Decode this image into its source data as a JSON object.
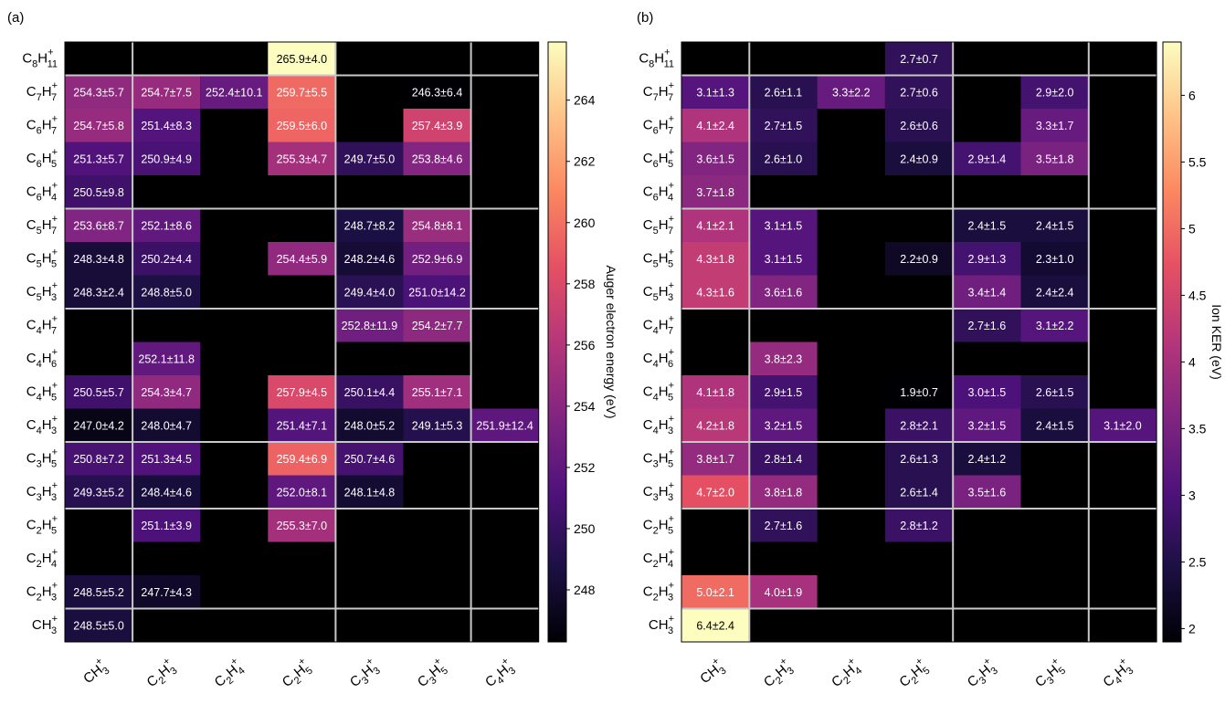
{
  "panels": [
    "(a)",
    "(b)"
  ],
  "rows": [
    {
      "base": "C",
      "cs": "8",
      "h": "H",
      "hs": "11"
    },
    {
      "base": "C",
      "cs": "7",
      "h": "H",
      "hs": "7"
    },
    {
      "base": "C",
      "cs": "6",
      "h": "H",
      "hs": "7"
    },
    {
      "base": "C",
      "cs": "6",
      "h": "H",
      "hs": "5"
    },
    {
      "base": "C",
      "cs": "6",
      "h": "H",
      "hs": "4"
    },
    {
      "base": "C",
      "cs": "5",
      "h": "H",
      "hs": "7"
    },
    {
      "base": "C",
      "cs": "5",
      "h": "H",
      "hs": "5"
    },
    {
      "base": "C",
      "cs": "5",
      "h": "H",
      "hs": "3"
    },
    {
      "base": "C",
      "cs": "4",
      "h": "H",
      "hs": "7"
    },
    {
      "base": "C",
      "cs": "4",
      "h": "H",
      "hs": "6"
    },
    {
      "base": "C",
      "cs": "4",
      "h": "H",
      "hs": "5"
    },
    {
      "base": "C",
      "cs": "4",
      "h": "H",
      "hs": "3"
    },
    {
      "base": "C",
      "cs": "3",
      "h": "H",
      "hs": "5"
    },
    {
      "base": "C",
      "cs": "3",
      "h": "H",
      "hs": "3"
    },
    {
      "base": "C",
      "cs": "2",
      "h": "H",
      "hs": "5"
    },
    {
      "base": "C",
      "cs": "2",
      "h": "H",
      "hs": "4"
    },
    {
      "base": "C",
      "cs": "2",
      "h": "H",
      "hs": "3"
    },
    {
      "base": "CH",
      "cs": "",
      "h": "",
      "hs": "3"
    }
  ],
  "cols": [
    {
      "base": "CH",
      "cs": "",
      "h": "",
      "hs": "3"
    },
    {
      "base": "C",
      "cs": "2",
      "h": "H",
      "hs": "3"
    },
    {
      "base": "C",
      "cs": "2",
      "h": "H",
      "hs": "4"
    },
    {
      "base": "C",
      "cs": "2",
      "h": "H",
      "hs": "5"
    },
    {
      "base": "C",
      "cs": "3",
      "h": "H",
      "hs": "3"
    },
    {
      "base": "C",
      "cs": "3",
      "h": "H",
      "hs": "5"
    },
    {
      "base": "C",
      "cs": "4",
      "h": "H",
      "hs": "3"
    }
  ],
  "chart_data": [
    {
      "type": "heatmap",
      "panel": "(a)",
      "colorbar_label": "Auger electron energy (eV)",
      "colorbar_range": [
        246.3,
        265.9
      ],
      "colorbar_ticks": [
        248,
        250,
        252,
        254,
        256,
        258,
        260,
        262,
        264
      ],
      "cells": [
        {
          "r": 0,
          "c": 3,
          "v": 265.9,
          "label": "265.9±4.0"
        },
        {
          "r": 1,
          "c": 0,
          "v": 254.3,
          "label": "254.3±5.7"
        },
        {
          "r": 1,
          "c": 1,
          "v": 254.7,
          "label": "254.7±7.5"
        },
        {
          "r": 1,
          "c": 2,
          "v": 252.4,
          "label": "252.4±10.1"
        },
        {
          "r": 1,
          "c": 3,
          "v": 259.7,
          "label": "259.7±5.5"
        },
        {
          "r": 1,
          "c": 5,
          "v": 246.3,
          "label": "246.3±6.4"
        },
        {
          "r": 2,
          "c": 0,
          "v": 254.7,
          "label": "254.7±5.8"
        },
        {
          "r": 2,
          "c": 1,
          "v": 251.4,
          "label": "251.4±8.3"
        },
        {
          "r": 2,
          "c": 3,
          "v": 259.5,
          "label": "259.5±6.0"
        },
        {
          "r": 2,
          "c": 5,
          "v": 257.4,
          "label": "257.4±3.9"
        },
        {
          "r": 3,
          "c": 0,
          "v": 251.3,
          "label": "251.3±5.7"
        },
        {
          "r": 3,
          "c": 1,
          "v": 250.9,
          "label": "250.9±4.9"
        },
        {
          "r": 3,
          "c": 3,
          "v": 255.3,
          "label": "255.3±4.7"
        },
        {
          "r": 3,
          "c": 4,
          "v": 249.7,
          "label": "249.7±5.0"
        },
        {
          "r": 3,
          "c": 5,
          "v": 253.8,
          "label": "253.8±4.6"
        },
        {
          "r": 4,
          "c": 0,
          "v": 250.5,
          "label": "250.5±9.8"
        },
        {
          "r": 5,
          "c": 0,
          "v": 253.6,
          "label": "253.6±8.7"
        },
        {
          "r": 5,
          "c": 1,
          "v": 252.1,
          "label": "252.1±8.6"
        },
        {
          "r": 5,
          "c": 4,
          "v": 248.7,
          "label": "248.7±8.2"
        },
        {
          "r": 5,
          "c": 5,
          "v": 254.8,
          "label": "254.8±8.1"
        },
        {
          "r": 6,
          "c": 0,
          "v": 248.3,
          "label": "248.3±4.8"
        },
        {
          "r": 6,
          "c": 1,
          "v": 250.2,
          "label": "250.2±4.4"
        },
        {
          "r": 6,
          "c": 3,
          "v": 254.4,
          "label": "254.4±5.9"
        },
        {
          "r": 6,
          "c": 4,
          "v": 248.2,
          "label": "248.2±4.6"
        },
        {
          "r": 6,
          "c": 5,
          "v": 252.9,
          "label": "252.9±6.9"
        },
        {
          "r": 7,
          "c": 0,
          "v": 248.3,
          "label": "248.3±2.4"
        },
        {
          "r": 7,
          "c": 1,
          "v": 248.8,
          "label": "248.8±5.0"
        },
        {
          "r": 7,
          "c": 4,
          "v": 249.4,
          "label": "249.4±4.0"
        },
        {
          "r": 7,
          "c": 5,
          "v": 251.0,
          "label": "251.0±14.2"
        },
        {
          "r": 8,
          "c": 4,
          "v": 252.8,
          "label": "252.8±11.9"
        },
        {
          "r": 8,
          "c": 5,
          "v": 254.2,
          "label": "254.2±7.7"
        },
        {
          "r": 9,
          "c": 1,
          "v": 252.1,
          "label": "252.1±11.8"
        },
        {
          "r": 10,
          "c": 0,
          "v": 250.5,
          "label": "250.5±5.7"
        },
        {
          "r": 10,
          "c": 1,
          "v": 254.3,
          "label": "254.3±4.7"
        },
        {
          "r": 10,
          "c": 3,
          "v": 257.9,
          "label": "257.9±4.5"
        },
        {
          "r": 10,
          "c": 4,
          "v": 250.1,
          "label": "250.1±4.4"
        },
        {
          "r": 10,
          "c": 5,
          "v": 255.1,
          "label": "255.1±7.1"
        },
        {
          "r": 11,
          "c": 0,
          "v": 247.0,
          "label": "247.0±4.2"
        },
        {
          "r": 11,
          "c": 1,
          "v": 248.0,
          "label": "248.0±4.7"
        },
        {
          "r": 11,
          "c": 3,
          "v": 251.4,
          "label": "251.4±7.1"
        },
        {
          "r": 11,
          "c": 4,
          "v": 248.0,
          "label": "248.0±5.2"
        },
        {
          "r": 11,
          "c": 5,
          "v": 249.1,
          "label": "249.1±5.3"
        },
        {
          "r": 11,
          "c": 6,
          "v": 251.9,
          "label": "251.9±12.4"
        },
        {
          "r": 12,
          "c": 0,
          "v": 250.8,
          "label": "250.8±7.2"
        },
        {
          "r": 12,
          "c": 1,
          "v": 251.3,
          "label": "251.3±4.5"
        },
        {
          "r": 12,
          "c": 3,
          "v": 259.4,
          "label": "259.4±6.9"
        },
        {
          "r": 12,
          "c": 4,
          "v": 250.7,
          "label": "250.7±4.6"
        },
        {
          "r": 13,
          "c": 0,
          "v": 249.3,
          "label": "249.3±5.2"
        },
        {
          "r": 13,
          "c": 1,
          "v": 248.4,
          "label": "248.4±4.6"
        },
        {
          "r": 13,
          "c": 3,
          "v": 252.0,
          "label": "252.0±8.1"
        },
        {
          "r": 13,
          "c": 4,
          "v": 248.1,
          "label": "248.1±4.8"
        },
        {
          "r": 14,
          "c": 1,
          "v": 251.1,
          "label": "251.1±3.9"
        },
        {
          "r": 14,
          "c": 3,
          "v": 255.3,
          "label": "255.3±7.0"
        },
        {
          "r": 16,
          "c": 0,
          "v": 248.5,
          "label": "248.5±5.2"
        },
        {
          "r": 16,
          "c": 1,
          "v": 247.7,
          "label": "247.7±4.3"
        },
        {
          "r": 17,
          "c": 0,
          "v": 248.5,
          "label": "248.5±5.0"
        }
      ]
    },
    {
      "type": "heatmap",
      "panel": "(b)",
      "colorbar_label": "Ion KER (eV)",
      "colorbar_range": [
        1.9,
        6.4
      ],
      "colorbar_ticks": [
        "2",
        "2.5",
        "3",
        "3.5",
        "4",
        "4.5",
        "5",
        "5.5",
        "6"
      ],
      "cells": [
        {
          "r": 0,
          "c": 3,
          "v": 2.7,
          "label": "2.7±0.7"
        },
        {
          "r": 1,
          "c": 0,
          "v": 3.1,
          "label": "3.1±1.3"
        },
        {
          "r": 1,
          "c": 1,
          "v": 2.6,
          "label": "2.6±1.1"
        },
        {
          "r": 1,
          "c": 2,
          "v": 3.3,
          "label": "3.3±2.2"
        },
        {
          "r": 1,
          "c": 3,
          "v": 2.7,
          "label": "2.7±0.6"
        },
        {
          "r": 1,
          "c": 5,
          "v": 2.9,
          "label": "2.9±2.0"
        },
        {
          "r": 2,
          "c": 0,
          "v": 4.1,
          "label": "4.1±2.4"
        },
        {
          "r": 2,
          "c": 1,
          "v": 2.7,
          "label": "2.7±1.5"
        },
        {
          "r": 2,
          "c": 3,
          "v": 2.6,
          "label": "2.6±0.6"
        },
        {
          "r": 2,
          "c": 5,
          "v": 3.3,
          "label": "3.3±1.7"
        },
        {
          "r": 3,
          "c": 0,
          "v": 3.6,
          "label": "3.6±1.5"
        },
        {
          "r": 3,
          "c": 1,
          "v": 2.6,
          "label": "2.6±1.0"
        },
        {
          "r": 3,
          "c": 3,
          "v": 2.4,
          "label": "2.4±0.9"
        },
        {
          "r": 3,
          "c": 4,
          "v": 2.9,
          "label": "2.9±1.4"
        },
        {
          "r": 3,
          "c": 5,
          "v": 3.5,
          "label": "3.5±1.8"
        },
        {
          "r": 4,
          "c": 0,
          "v": 3.7,
          "label": "3.7±1.8"
        },
        {
          "r": 5,
          "c": 0,
          "v": 4.1,
          "label": "4.1±2.1"
        },
        {
          "r": 5,
          "c": 1,
          "v": 3.1,
          "label": "3.1±1.5"
        },
        {
          "r": 5,
          "c": 4,
          "v": 2.4,
          "label": "2.4±1.5"
        },
        {
          "r": 5,
          "c": 5,
          "v": 2.4,
          "label": "2.4±1.5"
        },
        {
          "r": 6,
          "c": 0,
          "v": 4.3,
          "label": "4.3±1.8"
        },
        {
          "r": 6,
          "c": 1,
          "v": 3.1,
          "label": "3.1±1.5"
        },
        {
          "r": 6,
          "c": 3,
          "v": 2.2,
          "label": "2.2±0.9"
        },
        {
          "r": 6,
          "c": 4,
          "v": 2.9,
          "label": "2.9±1.3"
        },
        {
          "r": 6,
          "c": 5,
          "v": 2.3,
          "label": "2.3±1.0"
        },
        {
          "r": 7,
          "c": 0,
          "v": 4.3,
          "label": "4.3±1.6"
        },
        {
          "r": 7,
          "c": 1,
          "v": 3.6,
          "label": "3.6±1.6"
        },
        {
          "r": 7,
          "c": 4,
          "v": 3.4,
          "label": "3.4±1.4"
        },
        {
          "r": 7,
          "c": 5,
          "v": 2.4,
          "label": "2.4±2.4"
        },
        {
          "r": 8,
          "c": 4,
          "v": 2.7,
          "label": "2.7±1.6"
        },
        {
          "r": 8,
          "c": 5,
          "v": 3.1,
          "label": "3.1±2.2"
        },
        {
          "r": 9,
          "c": 1,
          "v": 3.8,
          "label": "3.8±2.3"
        },
        {
          "r": 10,
          "c": 0,
          "v": 4.1,
          "label": "4.1±1.8"
        },
        {
          "r": 10,
          "c": 1,
          "v": 2.9,
          "label": "2.9±1.5"
        },
        {
          "r": 10,
          "c": 3,
          "v": 1.9,
          "label": "1.9±0.7"
        },
        {
          "r": 10,
          "c": 4,
          "v": 3.0,
          "label": "3.0±1.5"
        },
        {
          "r": 10,
          "c": 5,
          "v": 2.6,
          "label": "2.6±1.5"
        },
        {
          "r": 11,
          "c": 0,
          "v": 4.2,
          "label": "4.2±1.8"
        },
        {
          "r": 11,
          "c": 1,
          "v": 3.2,
          "label": "3.2±1.5"
        },
        {
          "r": 11,
          "c": 3,
          "v": 2.8,
          "label": "2.8±2.1"
        },
        {
          "r": 11,
          "c": 4,
          "v": 3.2,
          "label": "3.2±1.5"
        },
        {
          "r": 11,
          "c": 5,
          "v": 2.4,
          "label": "2.4±1.5"
        },
        {
          "r": 11,
          "c": 6,
          "v": 3.1,
          "label": "3.1±2.0"
        },
        {
          "r": 12,
          "c": 0,
          "v": 3.8,
          "label": "3.8±1.7"
        },
        {
          "r": 12,
          "c": 1,
          "v": 2.8,
          "label": "2.8±1.4"
        },
        {
          "r": 12,
          "c": 3,
          "v": 2.6,
          "label": "2.6±1.3"
        },
        {
          "r": 12,
          "c": 4,
          "v": 2.4,
          "label": "2.4±1.2"
        },
        {
          "r": 13,
          "c": 0,
          "v": 4.7,
          "label": "4.7±2.0"
        },
        {
          "r": 13,
          "c": 1,
          "v": 3.8,
          "label": "3.8±1.8"
        },
        {
          "r": 13,
          "c": 3,
          "v": 2.6,
          "label": "2.6±1.4"
        },
        {
          "r": 13,
          "c": 4,
          "v": 3.5,
          "label": "3.5±1.6"
        },
        {
          "r": 14,
          "c": 1,
          "v": 2.7,
          "label": "2.7±1.6"
        },
        {
          "r": 14,
          "c": 3,
          "v": 2.8,
          "label": "2.8±1.2"
        },
        {
          "r": 16,
          "c": 0,
          "v": 5.0,
          "label": "5.0±2.1"
        },
        {
          "r": 16,
          "c": 1,
          "v": 4.0,
          "label": "4.0±1.9"
        },
        {
          "r": 17,
          "c": 0,
          "v": 6.4,
          "label": "6.4±2.4"
        }
      ]
    }
  ]
}
